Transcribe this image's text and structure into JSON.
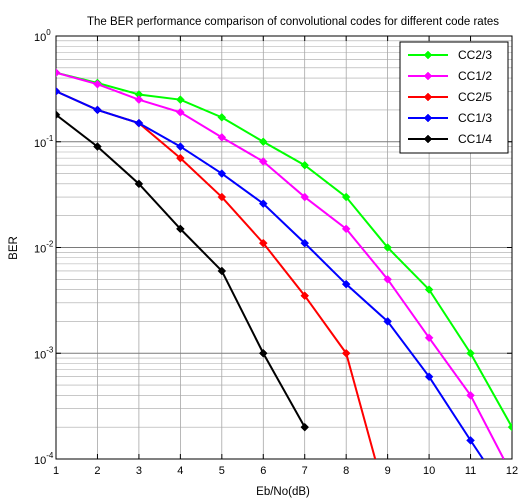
{
  "chart_data": {
    "type": "line",
    "title": "The BER performance comparison of convolutional codes for different code rates",
    "xlabel": "Eb/No(dB)",
    "ylabel": "BER",
    "xlim": [
      1,
      12
    ],
    "ylim": [
      0.0001,
      1
    ],
    "yscale": "log",
    "grid": true,
    "legend_position": "top-right",
    "x_ticks": [
      1,
      2,
      3,
      4,
      5,
      6,
      7,
      8,
      9,
      10,
      11,
      12
    ],
    "y_ticks": [
      {
        "base": "10",
        "exp": "0",
        "value": 1
      },
      {
        "base": "10",
        "exp": "-1",
        "value": 0.1
      },
      {
        "base": "10",
        "exp": "-2",
        "value": 0.01
      },
      {
        "base": "10",
        "exp": "-3",
        "value": 0.001
      },
      {
        "base": "10",
        "exp": "-4",
        "value": 0.0001
      }
    ],
    "series": [
      {
        "name": "CC2/3",
        "color": "#00ff00",
        "x": [
          1,
          2,
          3,
          4,
          5,
          6,
          7,
          8,
          9,
          10,
          11,
          12
        ],
        "y": [
          0.45,
          0.36,
          0.28,
          0.25,
          0.17,
          0.1,
          0.06,
          0.03,
          0.01,
          0.004,
          0.001,
          0.0002
        ]
      },
      {
        "name": "CC1/2",
        "color": "#ff00ff",
        "x": [
          1,
          2,
          3,
          4,
          5,
          6,
          7,
          8,
          9,
          10,
          11,
          11.8
        ],
        "y": [
          0.45,
          0.35,
          0.25,
          0.19,
          0.11,
          0.065,
          0.03,
          0.015,
          0.005,
          0.0014,
          0.0004,
          0.0001
        ]
      },
      {
        "name": "CC2/5",
        "color": "#ff0000",
        "x": [
          1,
          2,
          3,
          4,
          5,
          6,
          7,
          8,
          8.7
        ],
        "y": [
          0.3,
          0.2,
          0.15,
          0.07,
          0.03,
          0.011,
          0.0035,
          0.001,
          0.0001
        ]
      },
      {
        "name": "CC1/3",
        "color": "#0000ff",
        "x": [
          1,
          2,
          3,
          4,
          5,
          6,
          7,
          8,
          9,
          10,
          11,
          11.3
        ],
        "y": [
          0.3,
          0.2,
          0.15,
          0.09,
          0.05,
          0.026,
          0.011,
          0.0045,
          0.002,
          0.0006,
          0.00015,
          0.0001
        ]
      },
      {
        "name": "CC1/4",
        "color": "#000000",
        "x": [
          1,
          2,
          3,
          4,
          5,
          6,
          7
        ],
        "y": [
          0.18,
          0.09,
          0.04,
          0.015,
          0.006,
          0.001,
          0.0002
        ]
      }
    ]
  }
}
